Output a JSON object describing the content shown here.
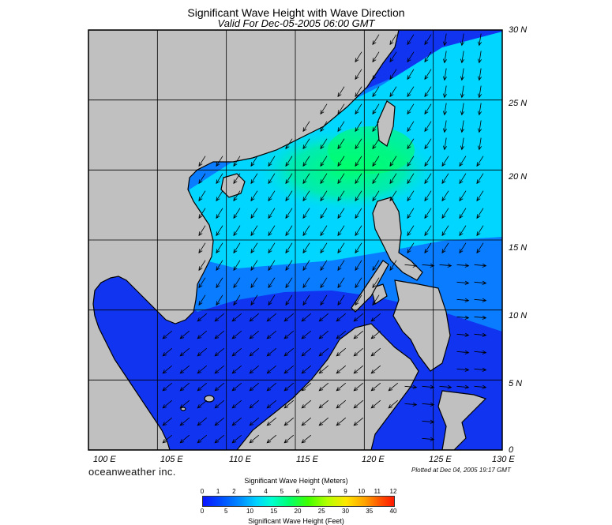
{
  "header": {
    "title": "Significant Wave Height with Wave Direction",
    "subtitle": "Valid For Dec-05-2005 06:00 GMT"
  },
  "map": {
    "lat_labels": [
      "30 N",
      "25 N",
      "20 N",
      "15 N",
      "10 N",
      "5 N",
      "0"
    ],
    "lon_labels": [
      "100 E",
      "105 E",
      "110 E",
      "115 E",
      "120 E",
      "125 E",
      "130 E"
    ],
    "lat_range": [
      0,
      30
    ],
    "lon_range": [
      100,
      130
    ],
    "grid_step_degrees": 5,
    "land_color": "#c0c0c0",
    "coast_color": "#000000",
    "arrow_color": "#000000",
    "wave_field_colors": {
      "low": "#1030f0",
      "mid": "#0080ff",
      "cyan": "#00d8ff",
      "high": "#00ff80"
    }
  },
  "footer": {
    "credit": "oceanweather inc.",
    "plotted": "Plotted at Dec 04, 2005 19:17 GMT"
  },
  "legend": {
    "title_meters": "Significant Wave Height (Meters)",
    "title_feet": "Significant Wave Height (Feet)",
    "ticks_meters": [
      "0",
      "1",
      "2",
      "3",
      "4",
      "5",
      "6",
      "7",
      "8",
      "9",
      "10",
      "11",
      "12"
    ],
    "ticks_feet": [
      "0",
      "5",
      "10",
      "15",
      "20",
      "25",
      "30",
      "35",
      "40"
    ],
    "meters_max": 12,
    "feet_max": 40
  }
}
